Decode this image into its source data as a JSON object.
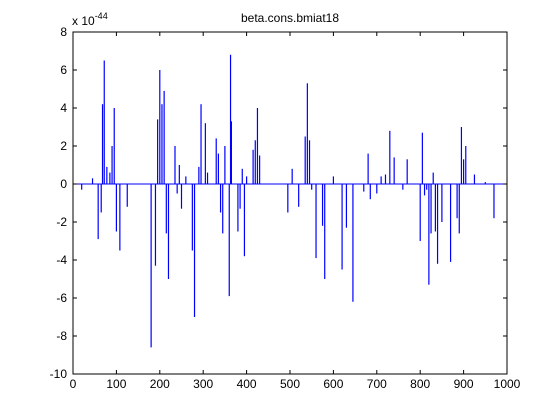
{
  "chart_data": {
    "type": "bar",
    "title": "beta.cons.bmiat18",
    "xlabel": "",
    "ylabel": "",
    "scale_label": "x 10",
    "scale_exponent": "-44",
    "xlim": [
      0,
      1000
    ],
    "ylim": [
      -10,
      8
    ],
    "xticks": [
      "0",
      "100",
      "200",
      "300",
      "400",
      "500",
      "600",
      "700",
      "800",
      "900",
      "1000"
    ],
    "yticks": [
      "-10",
      "-8",
      "-6",
      "-4",
      "-2",
      "0",
      "2",
      "4",
      "6",
      "8"
    ],
    "grid": false,
    "bar_color": "#0000ff",
    "x": [
      20,
      45,
      58,
      65,
      68,
      72,
      78,
      85,
      90,
      95,
      100,
      108,
      125,
      180,
      190,
      195,
      200,
      205,
      210,
      215,
      220,
      235,
      240,
      245,
      250,
      260,
      275,
      280,
      290,
      295,
      305,
      310,
      330,
      335,
      340,
      345,
      350,
      360,
      363,
      365,
      380,
      385,
      390,
      395,
      400,
      415,
      420,
      425,
      430,
      495,
      505,
      520,
      535,
      540,
      545,
      550,
      560,
      575,
      580,
      600,
      620,
      630,
      645,
      670,
      680,
      685,
      700,
      710,
      720,
      730,
      740,
      760,
      770,
      800,
      805,
      810,
      815,
      820,
      825,
      830,
      835,
      840,
      850,
      870,
      885,
      890,
      895,
      900,
      905,
      925,
      950,
      970
    ],
    "values": [
      -0.3,
      0.3,
      -2.9,
      -1.5,
      4.2,
      6.5,
      0.9,
      0.6,
      2.0,
      4.0,
      -2.5,
      -3.5,
      -1.2,
      -8.6,
      -4.3,
      3.4,
      6.0,
      4.2,
      4.9,
      -2.6,
      -5.0,
      2.0,
      -0.5,
      1.0,
      -1.3,
      0.4,
      -3.5,
      -7.0,
      0.9,
      4.2,
      3.2,
      0.6,
      2.4,
      1.6,
      -1.5,
      -2.6,
      2.0,
      -5.9,
      6.8,
      3.3,
      -2.5,
      -1.3,
      0.8,
      -3.8,
      0.4,
      1.8,
      2.3,
      4.0,
      1.5,
      -1.5,
      0.8,
      -1.2,
      2.5,
      5.3,
      2.3,
      -0.3,
      -3.9,
      -2.2,
      -5.0,
      0.4,
      -4.5,
      -2.3,
      -6.2,
      -0.4,
      1.6,
      -0.8,
      -0.5,
      0.4,
      0.5,
      2.8,
      1.4,
      -0.3,
      1.3,
      -3.0,
      2.7,
      -0.6,
      -0.3,
      -5.3,
      -2.6,
      0.6,
      -2.5,
      -4.2,
      -2.0,
      -4.1,
      -1.8,
      -2.6,
      3.0,
      1.3,
      2.0,
      0.5,
      0.1,
      -1.8
    ]
  }
}
